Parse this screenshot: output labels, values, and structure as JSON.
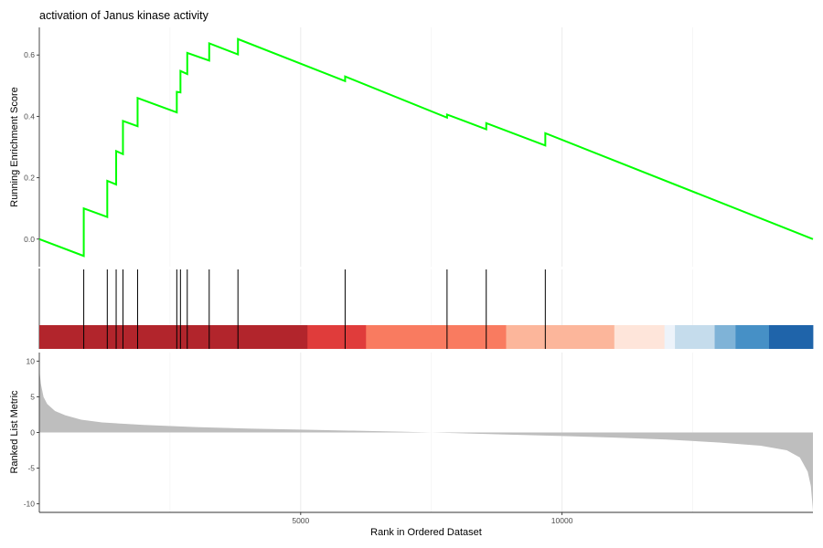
{
  "chart_data": {
    "type": "line",
    "title": "activation of Janus kinase activity",
    "xlabel": "Rank in Ordered Dataset",
    "xlim": [
      0,
      14800
    ],
    "x_ticks": [
      5000,
      10000
    ],
    "grid": "vertical-major-minor",
    "es_panel": {
      "ylabel": "Running Enrichment Score",
      "ylim": [
        -0.09,
        0.69
      ],
      "y_ticks": [
        0.0,
        0.2,
        0.4,
        0.6
      ],
      "line_color": "#00ff00",
      "points": [
        [
          0,
          0.0
        ],
        [
          850,
          -0.055
        ],
        [
          850,
          0.1
        ],
        [
          1300,
          0.072
        ],
        [
          1300,
          0.19
        ],
        [
          1470,
          0.178
        ],
        [
          1470,
          0.287
        ],
        [
          1600,
          0.277
        ],
        [
          1600,
          0.385
        ],
        [
          1880,
          0.368
        ],
        [
          1880,
          0.46
        ],
        [
          2630,
          0.413
        ],
        [
          2630,
          0.48
        ],
        [
          2700,
          0.478
        ],
        [
          2700,
          0.548
        ],
        [
          2830,
          0.538
        ],
        [
          2830,
          0.607
        ],
        [
          3250,
          0.582
        ],
        [
          3250,
          0.638
        ],
        [
          3800,
          0.602
        ],
        [
          3800,
          0.652
        ],
        [
          5850,
          0.515
        ],
        [
          5850,
          0.53
        ],
        [
          7800,
          0.396
        ],
        [
          7800,
          0.406
        ],
        [
          8550,
          0.358
        ],
        [
          8550,
          0.378
        ],
        [
          9680,
          0.305
        ],
        [
          9680,
          0.345
        ],
        [
          14800,
          0.0
        ]
      ]
    },
    "gene_hits": [
      850,
      1300,
      1470,
      1600,
      1880,
      2630,
      2700,
      2830,
      3250,
      3800,
      5850,
      7800,
      8550,
      9680
    ],
    "color_bar": [
      {
        "start": 0,
        "end": 5130,
        "color": "#b2252c"
      },
      {
        "start": 5130,
        "end": 6250,
        "color": "#e03c3b"
      },
      {
        "start": 6250,
        "end": 8930,
        "color": "#f97b60"
      },
      {
        "start": 8930,
        "end": 11000,
        "color": "#fcb69b"
      },
      {
        "start": 11000,
        "end": 11960,
        "color": "#fee5da"
      },
      {
        "start": 11960,
        "end": 12160,
        "color": "#edf3fa"
      },
      {
        "start": 12160,
        "end": 12920,
        "color": "#c5dcec"
      },
      {
        "start": 12920,
        "end": 13320,
        "color": "#7fb3d7"
      },
      {
        "start": 13320,
        "end": 13960,
        "color": "#4690c6"
      },
      {
        "start": 13960,
        "end": 14800,
        "color": "#1f64aa"
      }
    ],
    "metric_panel": {
      "ylabel": "Ranked List Metric",
      "ylim": [
        -11.2,
        11.2
      ],
      "y_ticks": [
        10,
        5,
        0,
        -5,
        -10
      ],
      "fill_color": "#bebebe",
      "profile": [
        [
          0,
          8.8
        ],
        [
          30,
          6.8
        ],
        [
          80,
          5.0
        ],
        [
          150,
          4.0
        ],
        [
          300,
          3.0
        ],
        [
          500,
          2.4
        ],
        [
          800,
          1.8
        ],
        [
          1200,
          1.4
        ],
        [
          2000,
          1.05
        ],
        [
          3000,
          0.75
        ],
        [
          4000,
          0.55
        ],
        [
          5000,
          0.4
        ],
        [
          6000,
          0.25
        ],
        [
          7000,
          0.1
        ],
        [
          7500,
          0.0
        ],
        [
          8000,
          -0.1
        ],
        [
          9000,
          -0.3
        ],
        [
          10000,
          -0.5
        ],
        [
          11000,
          -0.72
        ],
        [
          12000,
          -1.0
        ],
        [
          13000,
          -1.4
        ],
        [
          13800,
          -1.85
        ],
        [
          14300,
          -2.5
        ],
        [
          14550,
          -3.5
        ],
        [
          14700,
          -5.5
        ],
        [
          14760,
          -7.5
        ],
        [
          14800,
          -10.9
        ]
      ]
    }
  }
}
